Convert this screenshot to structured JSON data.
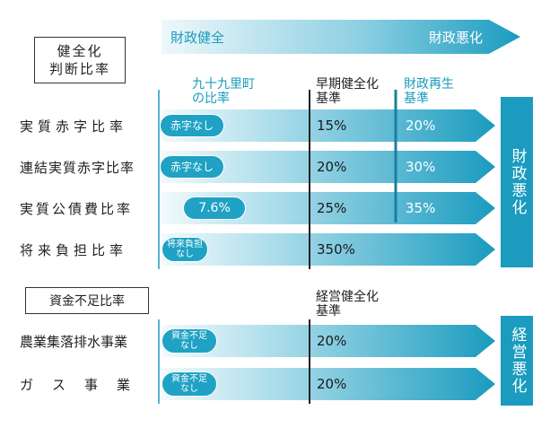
{
  "header": {
    "left_label": "財政健全",
    "right_label": "財政悪化"
  },
  "section1": {
    "title": "健全化\n判断比率",
    "columns": {
      "town": "九十九里町\nの比率",
      "early": "早期健全化\n基準",
      "rebuild": "財政再生\n基準"
    },
    "side_label": "財政悪化",
    "rows": [
      {
        "label": "実質赤字比率",
        "town": "赤字なし",
        "early": "15%",
        "rebuild": "20%"
      },
      {
        "label": "連結実質赤字比率",
        "town": "赤字なし",
        "early": "20%",
        "rebuild": "30%"
      },
      {
        "label": "実質公債費比率",
        "town": "7.6%",
        "early": "25%",
        "rebuild": "35%"
      },
      {
        "label": "将来負担比率",
        "town": "将来負担\nなし",
        "early": "350%",
        "rebuild": ""
      }
    ]
  },
  "section2": {
    "title": "資金不足比率",
    "columns": {
      "mgmt": "経営健全化\n基準"
    },
    "side_label": "経営悪化",
    "rows": [
      {
        "label": "農業集落排水事業",
        "town": "資金不足\nなし",
        "mgmt": "20%"
      },
      {
        "label": "ガス事業",
        "town": "資金不足\nなし",
        "mgmt": "20%"
      }
    ]
  },
  "colors": {
    "accent": "#1a9bbf",
    "light": "#e6f4f8"
  }
}
